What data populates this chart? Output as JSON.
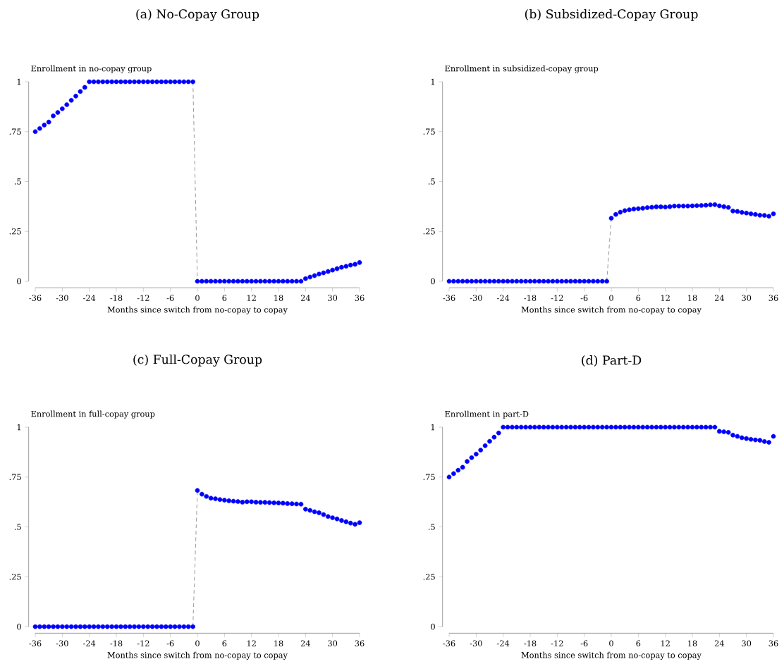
{
  "chart_data": [
    {
      "type": "scatter",
      "title": "(a) No-Copay Group",
      "ylabel": "Enrollment in no-copay group",
      "xlabel": "Months since switch from no-copay to copay",
      "x": [
        -36,
        -35,
        -34,
        -33,
        -32,
        -31,
        -30,
        -29,
        -28,
        -27,
        -26,
        -25,
        -24,
        -23,
        -22,
        -21,
        -20,
        -19,
        -18,
        -17,
        -16,
        -15,
        -14,
        -13,
        -12,
        -11,
        -10,
        -9,
        -8,
        -7,
        -6,
        -5,
        -4,
        -3,
        -2,
        -1,
        0,
        1,
        2,
        3,
        4,
        5,
        6,
        7,
        8,
        9,
        10,
        11,
        12,
        13,
        14,
        15,
        16,
        17,
        18,
        19,
        20,
        21,
        22,
        23,
        24,
        25,
        26,
        27,
        28,
        29,
        30,
        31,
        32,
        33,
        34,
        35,
        36
      ],
      "xlim": [
        -36,
        36
      ],
      "xticks": [
        -36,
        -30,
        -24,
        -18,
        -12,
        -6,
        0,
        6,
        12,
        18,
        24,
        30,
        36
      ],
      "ylim": [
        0,
        1
      ],
      "yticks": [
        0,
        {
          "value": 0.25,
          "label": ".25"
        },
        {
          "value": 0.5,
          "label": ".5"
        },
        {
          "value": 0.75,
          "label": ".75"
        },
        1
      ],
      "series": [
        {
          "type": "line",
          "color": "#808080",
          "line_style": "dashed",
          "values": [
            null,
            null,
            null,
            null,
            null,
            null,
            null,
            null,
            null,
            null,
            null,
            null,
            null,
            null,
            null,
            null,
            null,
            null,
            null,
            null,
            null,
            null,
            null,
            null,
            null,
            null,
            null,
            null,
            null,
            null,
            null,
            null,
            null,
            null,
            null,
            1,
            0,
            null,
            null,
            null,
            null,
            null,
            null,
            null,
            null,
            null,
            null,
            null,
            null,
            null,
            null,
            null,
            null,
            null,
            null,
            null,
            null,
            null,
            null,
            null,
            null,
            null,
            null,
            null,
            null,
            null,
            null,
            null,
            null,
            null,
            null,
            null,
            null
          ]
        },
        {
          "color": "#0000ff",
          "marker": "circle",
          "values": [
            0.75,
            0.766,
            0.783,
            0.798,
            0.829,
            0.846,
            0.865,
            0.885,
            0.907,
            0.928,
            0.951,
            0.972,
            1,
            1,
            1,
            1,
            1,
            1,
            1,
            1,
            1,
            1,
            1,
            1,
            1,
            1,
            1,
            1,
            1,
            1,
            1,
            1,
            1,
            1,
            1,
            1,
            0,
            0,
            0,
            0,
            0,
            0,
            0,
            0,
            0,
            0,
            0,
            0,
            0,
            0,
            0,
            0,
            0,
            0,
            0,
            0,
            0,
            0,
            0,
            0,
            0.013,
            0.021,
            0.028,
            0.036,
            0.042,
            0.049,
            0.056,
            0.063,
            0.07,
            0.075,
            0.081,
            0.085,
            0.094
          ]
        }
      ]
    },
    {
      "type": "scatter",
      "title": "(b) Subsidized-Copay Group",
      "ylabel": "Enrollment in subsidized-copay group",
      "xlabel": "Months since switch from no-copay to copay",
      "x": [
        -36,
        -35,
        -34,
        -33,
        -32,
        -31,
        -30,
        -29,
        -28,
        -27,
        -26,
        -25,
        -24,
        -23,
        -22,
        -21,
        -20,
        -19,
        -18,
        -17,
        -16,
        -15,
        -14,
        -13,
        -12,
        -11,
        -10,
        -9,
        -8,
        -7,
        -6,
        -5,
        -4,
        -3,
        -2,
        -1,
        0,
        1,
        2,
        3,
        4,
        5,
        6,
        7,
        8,
        9,
        10,
        11,
        12,
        13,
        14,
        15,
        16,
        17,
        18,
        19,
        20,
        21,
        22,
        23,
        24,
        25,
        26,
        27,
        28,
        29,
        30,
        31,
        32,
        33,
        34,
        35,
        36
      ],
      "xlim": [
        -36,
        36
      ],
      "xticks": [
        -36,
        -30,
        -24,
        -18,
        -12,
        -6,
        0,
        6,
        12,
        18,
        24,
        30,
        36
      ],
      "ylim": [
        0,
        1
      ],
      "yticks": [
        0,
        {
          "value": 0.25,
          "label": ".25"
        },
        {
          "value": 0.5,
          "label": ".5"
        },
        {
          "value": 0.75,
          "label": ".75"
        },
        1
      ],
      "series": [
        {
          "type": "line",
          "color": "#808080",
          "line_style": "dashed",
          "values": [
            null,
            null,
            null,
            null,
            null,
            null,
            null,
            null,
            null,
            null,
            null,
            null,
            null,
            null,
            null,
            null,
            null,
            null,
            null,
            null,
            null,
            null,
            null,
            null,
            null,
            null,
            null,
            null,
            null,
            null,
            null,
            null,
            null,
            null,
            null,
            0,
            0.316,
            null,
            null,
            null,
            null,
            null,
            null,
            null,
            null,
            null,
            null,
            null,
            null,
            null,
            null,
            null,
            null,
            null,
            null,
            null,
            null,
            null,
            null,
            null,
            null,
            null,
            null,
            null,
            null,
            null,
            null,
            null,
            null,
            null,
            null,
            null,
            null
          ]
        },
        {
          "color": "#0000ff",
          "marker": "circle",
          "values": [
            0,
            0,
            0,
            0,
            0,
            0,
            0,
            0,
            0,
            0,
            0,
            0,
            0,
            0,
            0,
            0,
            0,
            0,
            0,
            0,
            0,
            0,
            0,
            0,
            0,
            0,
            0,
            0,
            0,
            0,
            0,
            0,
            0,
            0,
            0,
            0,
            0.316,
            0.335,
            0.346,
            0.354,
            0.358,
            0.362,
            0.364,
            0.366,
            0.369,
            0.371,
            0.373,
            0.373,
            0.372,
            0.374,
            0.377,
            0.377,
            0.377,
            0.377,
            0.378,
            0.379,
            0.38,
            0.381,
            0.383,
            0.384,
            0.378,
            0.374,
            0.37,
            0.352,
            0.35,
            0.345,
            0.342,
            0.338,
            0.335,
            0.331,
            0.33,
            0.326,
            0.338
          ]
        }
      ]
    },
    {
      "type": "scatter",
      "title": "(c) Full-Copay Group",
      "ylabel": "Enrollment in full-copay group",
      "xlabel": "Months since switch from no-copay to copay",
      "x": [
        -36,
        -35,
        -34,
        -33,
        -32,
        -31,
        -30,
        -29,
        -28,
        -27,
        -26,
        -25,
        -24,
        -23,
        -22,
        -21,
        -20,
        -19,
        -18,
        -17,
        -16,
        -15,
        -14,
        -13,
        -12,
        -11,
        -10,
        -9,
        -8,
        -7,
        -6,
        -5,
        -4,
        -3,
        -2,
        -1,
        0,
        1,
        2,
        3,
        4,
        5,
        6,
        7,
        8,
        9,
        10,
        11,
        12,
        13,
        14,
        15,
        16,
        17,
        18,
        19,
        20,
        21,
        22,
        23,
        24,
        25,
        26,
        27,
        28,
        29,
        30,
        31,
        32,
        33,
        34,
        35,
        36
      ],
      "xlim": [
        -36,
        36
      ],
      "xticks": [
        -36,
        -30,
        -24,
        -18,
        -12,
        -6,
        0,
        6,
        12,
        18,
        24,
        30,
        36
      ],
      "ylim": [
        0,
        1
      ],
      "yticks": [
        0,
        {
          "value": 0.25,
          "label": ".25"
        },
        {
          "value": 0.5,
          "label": ".5"
        },
        {
          "value": 0.75,
          "label": ".75"
        },
        1
      ],
      "series": [
        {
          "type": "line",
          "color": "#808080",
          "line_style": "dashed",
          "values": [
            null,
            null,
            null,
            null,
            null,
            null,
            null,
            null,
            null,
            null,
            null,
            null,
            null,
            null,
            null,
            null,
            null,
            null,
            null,
            null,
            null,
            null,
            null,
            null,
            null,
            null,
            null,
            null,
            null,
            null,
            null,
            null,
            null,
            null,
            null,
            0,
            0.683,
            null,
            null,
            null,
            null,
            null,
            null,
            null,
            null,
            null,
            null,
            null,
            null,
            null,
            null,
            null,
            null,
            null,
            null,
            null,
            null,
            null,
            null,
            null,
            null,
            null,
            null,
            null,
            null,
            null,
            null,
            null,
            null,
            null,
            null,
            null,
            null
          ]
        },
        {
          "color": "#0000ff",
          "marker": "circle",
          "values": [
            0,
            0,
            0,
            0,
            0,
            0,
            0,
            0,
            0,
            0,
            0,
            0,
            0,
            0,
            0,
            0,
            0,
            0,
            0,
            0,
            0,
            0,
            0,
            0,
            0,
            0,
            0,
            0,
            0,
            0,
            0,
            0,
            0,
            0,
            0,
            0,
            0.683,
            0.664,
            0.653,
            0.644,
            0.641,
            0.637,
            0.634,
            0.631,
            0.629,
            0.627,
            0.624,
            0.626,
            0.626,
            0.624,
            0.623,
            0.623,
            0.622,
            0.621,
            0.62,
            0.619,
            0.617,
            0.616,
            0.615,
            0.614,
            0.589,
            0.583,
            0.576,
            0.571,
            0.562,
            0.552,
            0.546,
            0.54,
            0.532,
            0.526,
            0.519,
            0.513,
            0.521
          ]
        }
      ]
    },
    {
      "type": "scatter",
      "title": "(d) Part-D",
      "ylabel": "Enrollment in part-D",
      "xlabel": "Months since switch from no-copay to copay",
      "x": [
        -36,
        -35,
        -34,
        -33,
        -32,
        -31,
        -30,
        -29,
        -28,
        -27,
        -26,
        -25,
        -24,
        -23,
        -22,
        -21,
        -20,
        -19,
        -18,
        -17,
        -16,
        -15,
        -14,
        -13,
        -12,
        -11,
        -10,
        -9,
        -8,
        -7,
        -6,
        -5,
        -4,
        -3,
        -2,
        -1,
        0,
        1,
        2,
        3,
        4,
        5,
        6,
        7,
        8,
        9,
        10,
        11,
        12,
        13,
        14,
        15,
        16,
        17,
        18,
        19,
        20,
        21,
        22,
        23,
        24,
        25,
        26,
        27,
        28,
        29,
        30,
        31,
        32,
        33,
        34,
        35,
        36
      ],
      "xlim": [
        -36,
        36
      ],
      "xticks": [
        -36,
        -30,
        -24,
        -18,
        -12,
        -6,
        0,
        6,
        12,
        18,
        24,
        30,
        36
      ],
      "ylim": [
        0,
        1
      ],
      "yticks": [
        0,
        {
          "value": 0.25,
          "label": ".25"
        },
        {
          "value": 0.5,
          "label": ".5"
        },
        {
          "value": 0.75,
          "label": ".75"
        },
        1
      ],
      "series": [
        {
          "color": "#0000ff",
          "marker": "circle",
          "values": [
            0.75,
            0.767,
            0.784,
            0.799,
            0.828,
            0.847,
            0.865,
            0.885,
            0.907,
            0.929,
            0.95,
            0.971,
            1,
            1,
            1,
            1,
            1,
            1,
            1,
            1,
            1,
            1,
            1,
            1,
            1,
            1,
            1,
            1,
            1,
            1,
            1,
            1,
            1,
            1,
            1,
            1,
            1,
            1,
            1,
            1,
            1,
            1,
            1,
            1,
            1,
            1,
            1,
            1,
            1,
            1,
            1,
            1,
            1,
            1,
            1,
            1,
            1,
            1,
            1,
            1,
            0.979,
            0.977,
            0.974,
            0.96,
            0.954,
            0.947,
            0.943,
            0.939,
            0.936,
            0.934,
            0.928,
            0.924,
            0.954
          ]
        }
      ]
    }
  ]
}
